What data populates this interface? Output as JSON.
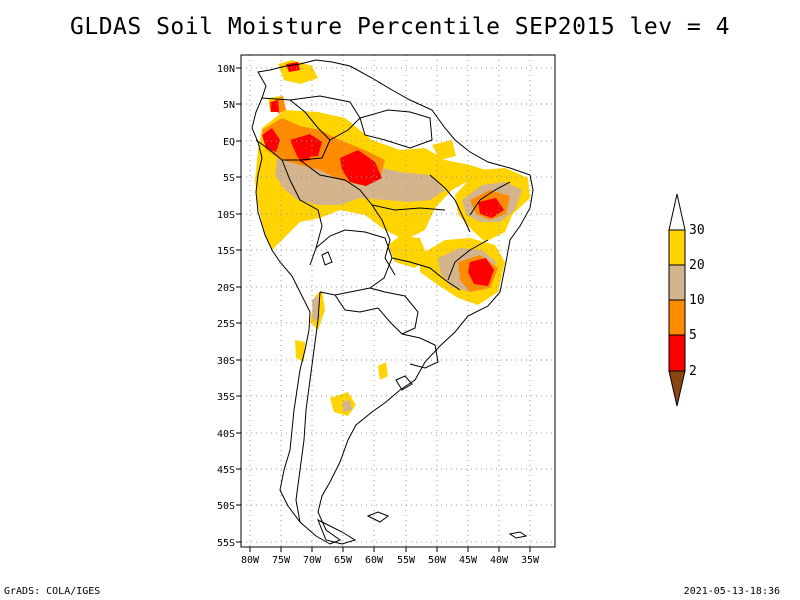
{
  "title": "GLDAS Soil Moisture Percentile SEP2015 lev = 4",
  "map": {
    "lat_labels": [
      "10N",
      "5N",
      "EQ",
      "5S",
      "10S",
      "15S",
      "20S",
      "25S",
      "30S",
      "35S",
      "40S",
      "45S",
      "50S",
      "55S"
    ],
    "lon_labels": [
      "80W",
      "75W",
      "70W",
      "65W",
      "60W",
      "55W",
      "50W",
      "45W",
      "40W",
      "35W"
    ],
    "grid": true,
    "grid_style": "dotted"
  },
  "legend": {
    "labels": [
      "30",
      "20",
      "10",
      "5",
      "2"
    ],
    "colors": {
      "above_30": "#ffffff",
      "20_30": "#ffd400",
      "10_20": "#d4b48c",
      "5_10": "#ff8c00",
      "2_5": "#ff0000",
      "below_2": "#8b4513"
    }
  },
  "colors": {
    "coast": "#000000",
    "grid": "#9a9a9a"
  },
  "footer": {
    "left": "GrADS: COLA/IGES",
    "right": "2021-05-13-18:36"
  }
}
